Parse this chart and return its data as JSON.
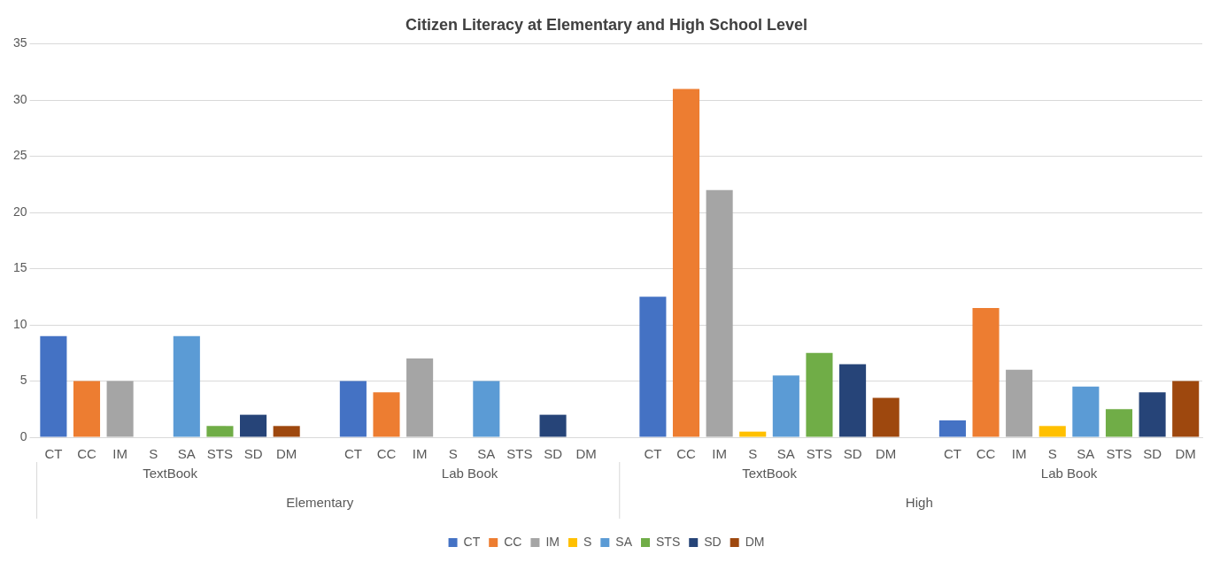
{
  "chart_data": {
    "type": "bar",
    "title": "Citizen Literacy at Elementary and High School Level",
    "categories": [
      "CT",
      "CC",
      "IM",
      "S",
      "SA",
      "STS",
      "SD",
      "DM",
      null,
      "CT",
      "CC",
      "IM",
      "S",
      "SA",
      "STS",
      "SD",
      "DM",
      null,
      "CT",
      "CC",
      "IM",
      "S",
      "SA",
      "STS",
      "SD",
      "DM",
      null,
      "CT",
      "CC",
      "IM",
      "S",
      "SA",
      "STS",
      "SD",
      "DM"
    ],
    "series": [
      {
        "name": "CT",
        "color": "#4472c4",
        "values": [
          9,
          null,
          null,
          null,
          null,
          null,
          null,
          null,
          null,
          5,
          null,
          null,
          null,
          null,
          null,
          null,
          null,
          null,
          12.5,
          null,
          null,
          null,
          null,
          null,
          null,
          null,
          null,
          1.5,
          null,
          null,
          null,
          null,
          null,
          null,
          null
        ]
      },
      {
        "name": "CC",
        "color": "#ed7d31",
        "values": [
          null,
          5,
          null,
          null,
          null,
          null,
          null,
          null,
          null,
          null,
          4,
          null,
          null,
          null,
          null,
          null,
          null,
          null,
          null,
          31,
          null,
          null,
          null,
          null,
          null,
          null,
          null,
          null,
          11.5,
          null,
          null,
          null,
          null,
          null,
          null
        ]
      },
      {
        "name": "IM",
        "color": "#a5a5a5",
        "values": [
          null,
          null,
          5,
          null,
          null,
          null,
          null,
          null,
          null,
          null,
          null,
          7,
          null,
          null,
          null,
          null,
          null,
          null,
          null,
          null,
          22,
          null,
          null,
          null,
          null,
          null,
          null,
          null,
          null,
          6,
          null,
          null,
          null,
          null,
          null
        ]
      },
      {
        "name": "S",
        "color": "#ffc000",
        "values": [
          null,
          null,
          null,
          0,
          null,
          null,
          null,
          null,
          null,
          null,
          null,
          null,
          0,
          null,
          null,
          null,
          null,
          null,
          null,
          null,
          null,
          0.5,
          null,
          null,
          null,
          null,
          null,
          null,
          null,
          null,
          1,
          null,
          null,
          null,
          null
        ]
      },
      {
        "name": "SA",
        "color": "#5b9bd5",
        "values": [
          null,
          null,
          null,
          null,
          9,
          null,
          null,
          null,
          null,
          null,
          null,
          null,
          null,
          5,
          null,
          null,
          null,
          null,
          null,
          null,
          null,
          null,
          5.5,
          null,
          null,
          null,
          null,
          null,
          null,
          null,
          null,
          4.5,
          null,
          null,
          null
        ]
      },
      {
        "name": "STS",
        "color": "#70ad47",
        "values": [
          null,
          null,
          null,
          null,
          null,
          1,
          null,
          null,
          null,
          null,
          null,
          null,
          null,
          null,
          0,
          null,
          null,
          null,
          null,
          null,
          null,
          null,
          null,
          7.5,
          null,
          null,
          null,
          null,
          null,
          null,
          null,
          null,
          2.5,
          null,
          null
        ]
      },
      {
        "name": "SD",
        "color": "#264478",
        "values": [
          null,
          null,
          null,
          null,
          null,
          null,
          2,
          null,
          null,
          null,
          null,
          null,
          null,
          null,
          null,
          2,
          null,
          null,
          null,
          null,
          null,
          null,
          null,
          null,
          6.5,
          null,
          null,
          null,
          null,
          null,
          null,
          null,
          null,
          4,
          null
        ]
      },
      {
        "name": "DM",
        "color": "#9e480e",
        "values": [
          null,
          null,
          null,
          null,
          null,
          null,
          null,
          1,
          null,
          null,
          null,
          null,
          null,
          null,
          null,
          null,
          0,
          null,
          null,
          null,
          null,
          null,
          null,
          null,
          null,
          3.5,
          null,
          null,
          null,
          null,
          null,
          null,
          null,
          null,
          5
        ]
      }
    ],
    "annotations": [
      "TextBook",
      "Lab Book",
      "TextBook",
      "Lab Book",
      "Elementary",
      "High"
    ],
    "ylim": [
      0,
      35
    ],
    "yticks": [
      0,
      5,
      10,
      15,
      20,
      25,
      30,
      35
    ],
    "grid": "y",
    "legend": "bottom"
  }
}
